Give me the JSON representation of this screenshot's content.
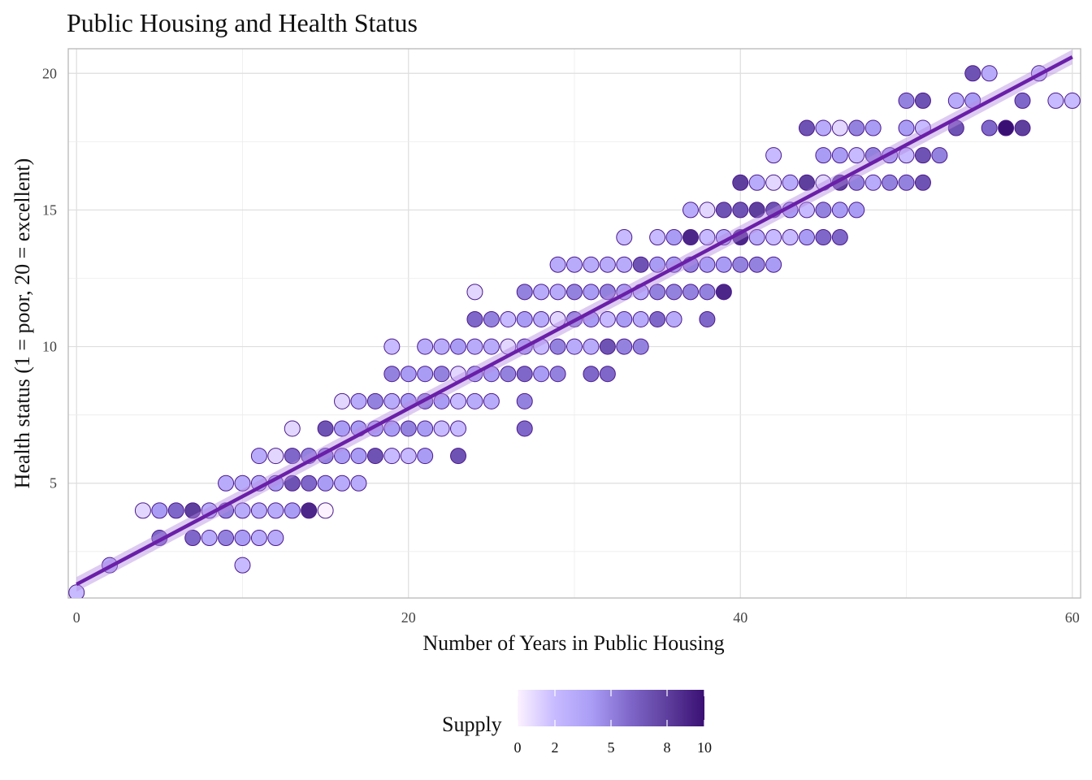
{
  "chart_data": {
    "type": "scatter",
    "title": "Public Housing and Health Status",
    "xlabel": "Number of Years in Public Housing",
    "ylabel": "Health status (1 = poor, 20 = excellent)",
    "xlim": [
      -0.5,
      60.5
    ],
    "ylim": [
      0.8,
      20.9
    ],
    "x_ticks": [
      0,
      20,
      40,
      60
    ],
    "y_ticks": [
      5,
      10,
      15,
      20
    ],
    "grid": true,
    "trend_line": {
      "type": "linear",
      "x": [
        0,
        60
      ],
      "y": [
        1.3,
        20.6
      ],
      "color": "#6a1fa8"
    },
    "legend": {
      "title": "Supply",
      "position": "bottom",
      "ticks": [
        0,
        2,
        5,
        8,
        10
      ],
      "range": [
        0,
        10
      ],
      "colors": [
        "#fcf2ff",
        "#c7baff",
        "#a99cf5",
        "#7f67c9",
        "#5e3f9e",
        "#3a0f73"
      ]
    },
    "points": [
      [
        0,
        1,
        2
      ],
      [
        2,
        2,
        3
      ],
      [
        4,
        4,
        1
      ],
      [
        5,
        4,
        4
      ],
      [
        5,
        3,
        6
      ],
      [
        6,
        4,
        6
      ],
      [
        7,
        4,
        8
      ],
      [
        7,
        3,
        6
      ],
      [
        8,
        4,
        3
      ],
      [
        8,
        3,
        3
      ],
      [
        9,
        5,
        3
      ],
      [
        9,
        4,
        5
      ],
      [
        9,
        3,
        5
      ],
      [
        10,
        5,
        3
      ],
      [
        10,
        4,
        3
      ],
      [
        10,
        3,
        4
      ],
      [
        10,
        2,
        2
      ],
      [
        11,
        6,
        3
      ],
      [
        11,
        5,
        3
      ],
      [
        11,
        4,
        3
      ],
      [
        11,
        3,
        3
      ],
      [
        12,
        6,
        1
      ],
      [
        12,
        5,
        4
      ],
      [
        12,
        4,
        3
      ],
      [
        12,
        3,
        3
      ],
      [
        13,
        7,
        1
      ],
      [
        13,
        6,
        6
      ],
      [
        13,
        5,
        7
      ],
      [
        13,
        4,
        4
      ],
      [
        14,
        6,
        5
      ],
      [
        14,
        5,
        6
      ],
      [
        14,
        4,
        9
      ],
      [
        15,
        7,
        7
      ],
      [
        15,
        6,
        5
      ],
      [
        15,
        5,
        4
      ],
      [
        15,
        4,
        0
      ],
      [
        16,
        8,
        1
      ],
      [
        16,
        7,
        4
      ],
      [
        16,
        6,
        4
      ],
      [
        16,
        5,
        3
      ],
      [
        17,
        8,
        3
      ],
      [
        17,
        7,
        4
      ],
      [
        17,
        6,
        4
      ],
      [
        17,
        5,
        3
      ],
      [
        18,
        8,
        5
      ],
      [
        18,
        7,
        4
      ],
      [
        18,
        6,
        7
      ],
      [
        19,
        10,
        2
      ],
      [
        19,
        9,
        5
      ],
      [
        19,
        8,
        3
      ],
      [
        19,
        7,
        4
      ],
      [
        19,
        6,
        2
      ],
      [
        20,
        9,
        4
      ],
      [
        20,
        8,
        4
      ],
      [
        20,
        7,
        5
      ],
      [
        20,
        6,
        2
      ],
      [
        21,
        10,
        3
      ],
      [
        21,
        9,
        4
      ],
      [
        21,
        8,
        5
      ],
      [
        21,
        7,
        4
      ],
      [
        21,
        6,
        4
      ],
      [
        22,
        10,
        3
      ],
      [
        22,
        9,
        5
      ],
      [
        22,
        8,
        4
      ],
      [
        22,
        7,
        2
      ],
      [
        23,
        10,
        4
      ],
      [
        23,
        9,
        1
      ],
      [
        23,
        8,
        2
      ],
      [
        23,
        7,
        2
      ],
      [
        23,
        6,
        7
      ],
      [
        24,
        12,
        1
      ],
      [
        24,
        11,
        6
      ],
      [
        24,
        10,
        3
      ],
      [
        24,
        9,
        4
      ],
      [
        24,
        8,
        3
      ],
      [
        25,
        11,
        5
      ],
      [
        25,
        10,
        3
      ],
      [
        25,
        9,
        4
      ],
      [
        25,
        8,
        3
      ],
      [
        26,
        11,
        2
      ],
      [
        26,
        10,
        1
      ],
      [
        26,
        9,
        5
      ],
      [
        27,
        12,
        5
      ],
      [
        27,
        11,
        4
      ],
      [
        27,
        10,
        4
      ],
      [
        27,
        9,
        6
      ],
      [
        27,
        8,
        5
      ],
      [
        27,
        7,
        6
      ],
      [
        28,
        12,
        3
      ],
      [
        28,
        11,
        3
      ],
      [
        28,
        10,
        2
      ],
      [
        28,
        9,
        4
      ],
      [
        29,
        13,
        3
      ],
      [
        29,
        12,
        3
      ],
      [
        29,
        11,
        1
      ],
      [
        29,
        10,
        5
      ],
      [
        29,
        9,
        5
      ],
      [
        30,
        13,
        3
      ],
      [
        30,
        12,
        5
      ],
      [
        30,
        11,
        5
      ],
      [
        30,
        10,
        3
      ],
      [
        31,
        13,
        3
      ],
      [
        31,
        12,
        4
      ],
      [
        31,
        11,
        4
      ],
      [
        31,
        10,
        3
      ],
      [
        31,
        9,
        6
      ],
      [
        32,
        13,
        3
      ],
      [
        32,
        12,
        5
      ],
      [
        32,
        11,
        2
      ],
      [
        32,
        10,
        7
      ],
      [
        32,
        9,
        6
      ],
      [
        33,
        14,
        2
      ],
      [
        33,
        13,
        3
      ],
      [
        33,
        12,
        4
      ],
      [
        33,
        11,
        4
      ],
      [
        33,
        10,
        5
      ],
      [
        34,
        13,
        7
      ],
      [
        34,
        12,
        3
      ],
      [
        34,
        11,
        3
      ],
      [
        34,
        10,
        5
      ],
      [
        35,
        14,
        2
      ],
      [
        35,
        13,
        4
      ],
      [
        35,
        12,
        5
      ],
      [
        35,
        11,
        6
      ],
      [
        36,
        14,
        4
      ],
      [
        36,
        13,
        4
      ],
      [
        36,
        12,
        5
      ],
      [
        36,
        11,
        3
      ],
      [
        37,
        15,
        3
      ],
      [
        37,
        14,
        9
      ],
      [
        37,
        13,
        5
      ],
      [
        37,
        12,
        5
      ],
      [
        38,
        15,
        1
      ],
      [
        38,
        14,
        2
      ],
      [
        38,
        13,
        4
      ],
      [
        38,
        12,
        5
      ],
      [
        38,
        11,
        6
      ],
      [
        39,
        15,
        7
      ],
      [
        39,
        14,
        3
      ],
      [
        39,
        13,
        4
      ],
      [
        39,
        12,
        9
      ],
      [
        40,
        16,
        8
      ],
      [
        40,
        15,
        7
      ],
      [
        40,
        14,
        9
      ],
      [
        40,
        13,
        5
      ],
      [
        41,
        16,
        3
      ],
      [
        41,
        15,
        8
      ],
      [
        41,
        14,
        3
      ],
      [
        41,
        13,
        5
      ],
      [
        42,
        17,
        2
      ],
      [
        42,
        16,
        1
      ],
      [
        42,
        15,
        7
      ],
      [
        42,
        14,
        2
      ],
      [
        42,
        13,
        4
      ],
      [
        43,
        16,
        3
      ],
      [
        43,
        15,
        4
      ],
      [
        43,
        14,
        2
      ],
      [
        44,
        18,
        7
      ],
      [
        44,
        16,
        8
      ],
      [
        44,
        15,
        2
      ],
      [
        44,
        14,
        4
      ],
      [
        45,
        18,
        3
      ],
      [
        45,
        17,
        4
      ],
      [
        45,
        16,
        1
      ],
      [
        45,
        15,
        5
      ],
      [
        45,
        14,
        6
      ],
      [
        46,
        18,
        1
      ],
      [
        46,
        17,
        4
      ],
      [
        46,
        16,
        8
      ],
      [
        46,
        15,
        4
      ],
      [
        46,
        14,
        6
      ],
      [
        47,
        18,
        5
      ],
      [
        47,
        17,
        2
      ],
      [
        47,
        16,
        5
      ],
      [
        47,
        15,
        4
      ],
      [
        48,
        18,
        4
      ],
      [
        48,
        17,
        5
      ],
      [
        48,
        16,
        3
      ],
      [
        49,
        17,
        4
      ],
      [
        49,
        16,
        5
      ],
      [
        50,
        19,
        5
      ],
      [
        50,
        18,
        4
      ],
      [
        50,
        17,
        2
      ],
      [
        50,
        16,
        5
      ],
      [
        51,
        19,
        7
      ],
      [
        51,
        18,
        2
      ],
      [
        51,
        17,
        7
      ],
      [
        51,
        16,
        7
      ],
      [
        52,
        17,
        5
      ],
      [
        53,
        19,
        3
      ],
      [
        53,
        18,
        7
      ],
      [
        54,
        20,
        7
      ],
      [
        54,
        19,
        4
      ],
      [
        55,
        20,
        3
      ],
      [
        55,
        18,
        6
      ],
      [
        56,
        18,
        10
      ],
      [
        57,
        19,
        6
      ],
      [
        57,
        18,
        8
      ],
      [
        58,
        20,
        2
      ],
      [
        59,
        19,
        2
      ],
      [
        60,
        19,
        2
      ]
    ]
  }
}
